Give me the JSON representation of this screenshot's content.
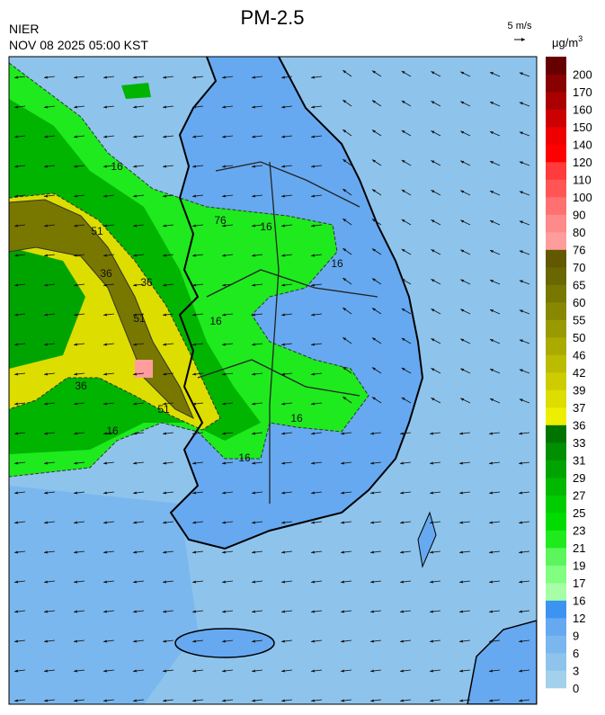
{
  "header": {
    "title": "PM-2.5",
    "agency": "NIER",
    "datetime": "NOV 08 2025 05:00 KST"
  },
  "wind_reference": {
    "label": "5 m/s"
  },
  "colorbar": {
    "unit": {
      "base": "μg/m",
      "sup": "3"
    },
    "levels": [
      0,
      3,
      6,
      9,
      12,
      16,
      17,
      19,
      21,
      23,
      25,
      27,
      29,
      31,
      33,
      36,
      37,
      39,
      42,
      46,
      50,
      55,
      60,
      65,
      70,
      76,
      80,
      90,
      100,
      110,
      120,
      140,
      150,
      160,
      170,
      200
    ],
    "colors": [
      "#a3d0ea",
      "#8ec4ec",
      "#7ab7ee",
      "#66a9f0",
      "#3d93f2",
      "#a6ffa6",
      "#80ff80",
      "#5cf55c",
      "#1eea1e",
      "#00dc00",
      "#00cc00",
      "#00b800",
      "#00a400",
      "#008f00",
      "#007400",
      "#eeee00",
      "#dddd00",
      "#cccc00",
      "#bbbb00",
      "#aaaa00",
      "#999900",
      "#888800",
      "#787700",
      "#6a6600",
      "#635700",
      "#ff9d9d",
      "#ff8a8a",
      "#ff7070",
      "#ff5555",
      "#ff3b3b",
      "#ff0000",
      "#ee0000",
      "#cc0000",
      "#aa0000",
      "#880000",
      "#660000"
    ]
  },
  "contour_labels": [
    "16",
    "51",
    "36",
    "36",
    "51",
    "36",
    "51",
    "16",
    "16",
    "16",
    "16",
    "16",
    "16",
    "76"
  ]
}
